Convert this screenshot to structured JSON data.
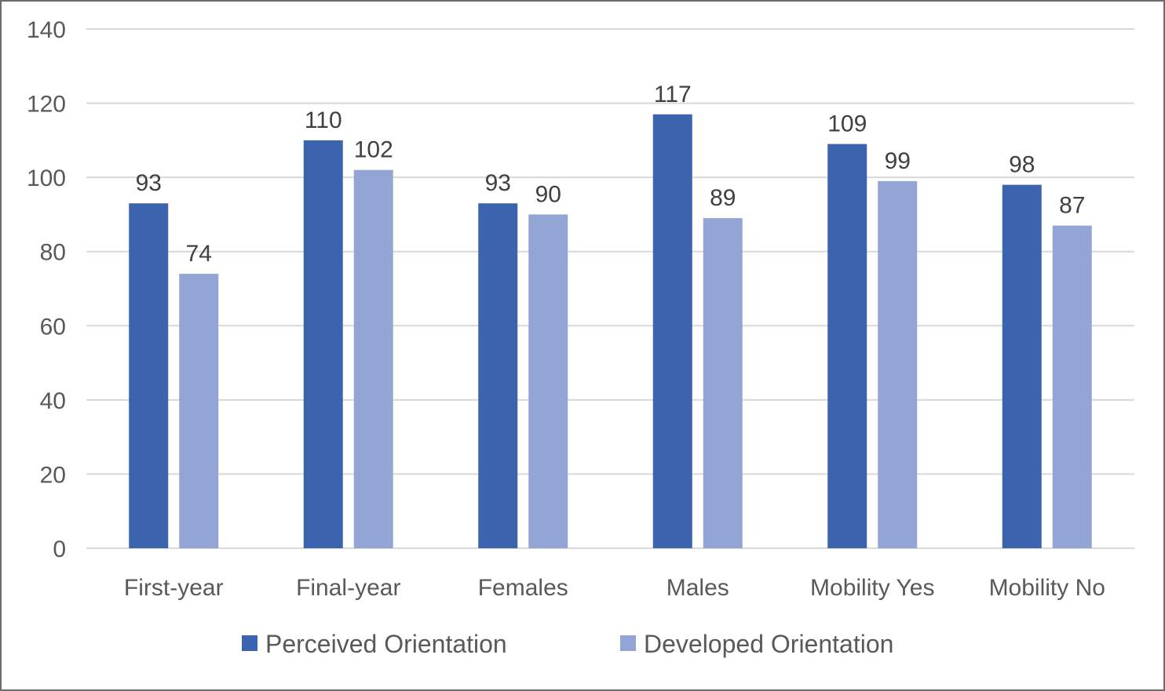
{
  "chart_data": {
    "type": "bar",
    "categories": [
      "First-year",
      "Final-year",
      "Females",
      "Males",
      "Mobility Yes",
      "Mobility No"
    ],
    "series": [
      {
        "name": "Perceived Orientation",
        "values": [
          93,
          110,
          93,
          117,
          109,
          98
        ],
        "color": "#3c64ae"
      },
      {
        "name": "Developed Orientation",
        "values": [
          74,
          102,
          90,
          89,
          99,
          87
        ],
        "color": "#92a5d5"
      }
    ],
    "y_ticks": [
      0,
      20,
      40,
      60,
      80,
      100,
      120,
      140
    ],
    "ylim": [
      0,
      140
    ],
    "grid": true,
    "legend": "bottom",
    "data_labels": true
  }
}
